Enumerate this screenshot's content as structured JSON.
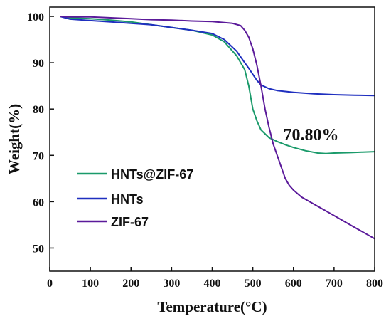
{
  "chart_data": {
    "type": "line",
    "title": "",
    "xlabel": "Temperature(°C)",
    "ylabel": "Weight(%)",
    "xlim": [
      0,
      800
    ],
    "ylim": [
      45,
      102
    ],
    "xticks": [
      0,
      100,
      200,
      300,
      400,
      500,
      600,
      700,
      800
    ],
    "yticks": [
      50,
      60,
      70,
      80,
      90,
      100
    ],
    "grid": false,
    "legend": "bottom-left",
    "annotations": [
      {
        "text": "70.80%",
        "x": 575,
        "y": 74.5
      }
    ],
    "series": [
      {
        "name": "HNTs@ZIF-67",
        "color": "#1a9a6a",
        "x": [
          25,
          50,
          100,
          150,
          200,
          250,
          300,
          350,
          400,
          430,
          460,
          480,
          490,
          500,
          510,
          520,
          540,
          560,
          580,
          600,
          630,
          660,
          680,
          700,
          740,
          770,
          800
        ],
        "y": [
          100,
          99.7,
          99.5,
          99.2,
          98.8,
          98.2,
          97.6,
          97.0,
          96.0,
          94.5,
          91.5,
          88.5,
          85.0,
          80.0,
          77.5,
          75.5,
          73.8,
          73.0,
          72.3,
          71.7,
          71.0,
          70.5,
          70.4,
          70.5,
          70.6,
          70.7,
          70.8
        ]
      },
      {
        "name": "HNTs",
        "color": "#1f2fbf",
        "x": [
          25,
          50,
          100,
          150,
          200,
          250,
          300,
          350,
          400,
          430,
          460,
          480,
          490,
          500,
          510,
          520,
          540,
          560,
          600,
          650,
          700,
          750,
          800
        ],
        "y": [
          100,
          99.4,
          99.1,
          98.8,
          98.5,
          98.2,
          97.6,
          97.0,
          96.3,
          95.0,
          92.5,
          90.0,
          88.8,
          87.5,
          86.2,
          85.2,
          84.4,
          84.0,
          83.6,
          83.3,
          83.1,
          83.0,
          82.9
        ]
      },
      {
        "name": "ZIF-67",
        "color": "#5b1a9a",
        "x": [
          25,
          50,
          100,
          150,
          200,
          250,
          300,
          350,
          400,
          450,
          470,
          480,
          490,
          500,
          510,
          520,
          530,
          540,
          550,
          560,
          570,
          580,
          590,
          600,
          620,
          650,
          700,
          750,
          800
        ],
        "y": [
          100,
          99.9,
          99.9,
          99.7,
          99.5,
          99.3,
          99.2,
          99.0,
          98.9,
          98.5,
          98.0,
          97.0,
          95.5,
          93.0,
          89.5,
          85.0,
          80.0,
          76.0,
          72.5,
          70.0,
          67.5,
          65.0,
          63.5,
          62.5,
          61.0,
          59.5,
          57.0,
          54.5,
          52.0
        ]
      }
    ]
  }
}
